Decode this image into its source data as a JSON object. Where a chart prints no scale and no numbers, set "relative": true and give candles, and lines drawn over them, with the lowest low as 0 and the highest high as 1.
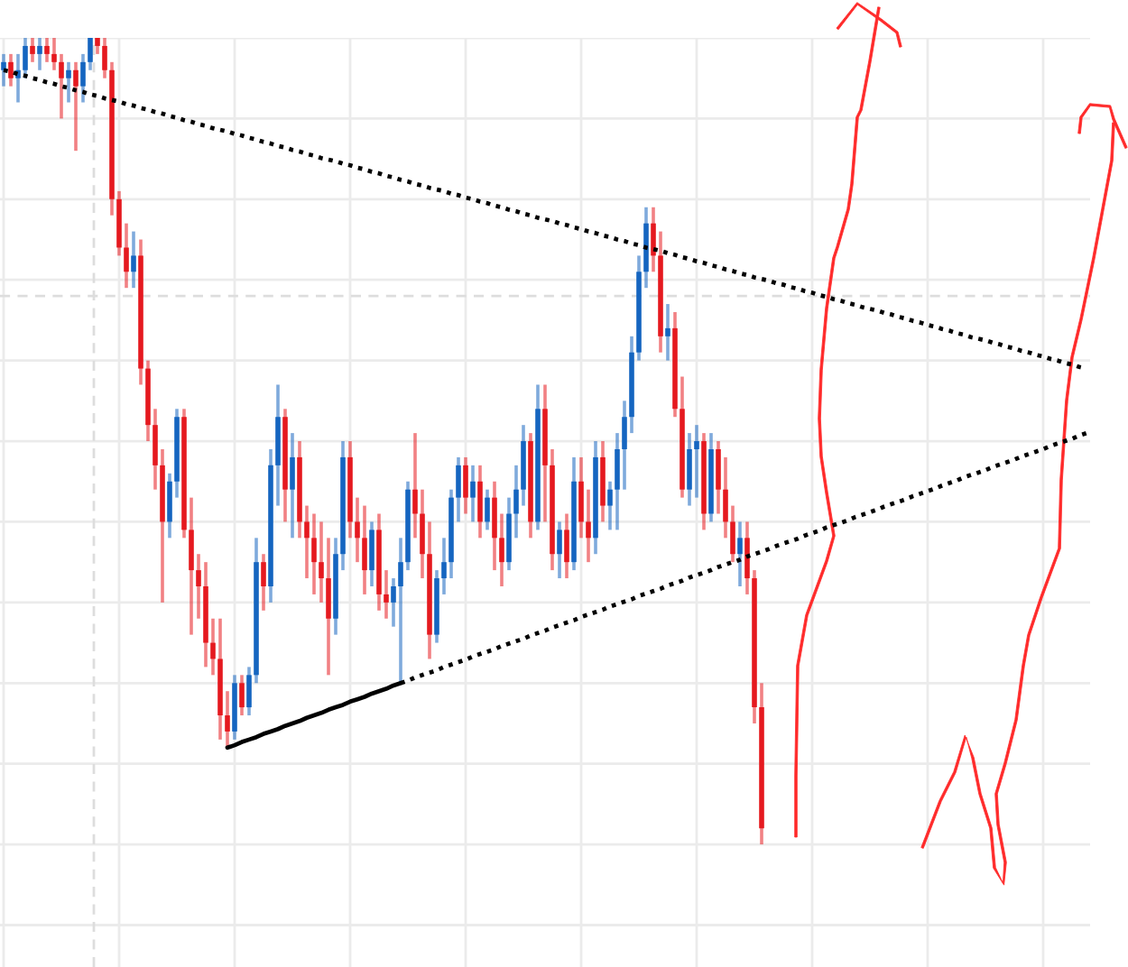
{
  "chart_data": {
    "type": "candlestick",
    "relative": true,
    "grid": true,
    "categories": [
      null,
      null,
      null,
      null,
      null,
      null,
      null,
      null,
      null,
      null,
      null,
      null,
      null,
      null,
      null,
      null,
      null,
      null,
      null,
      null,
      null,
      null,
      null,
      null,
      null,
      null,
      null,
      null,
      null,
      null,
      null,
      null,
      null,
      null,
      null,
      null,
      null,
      null,
      null,
      null,
      null,
      null,
      null,
      null,
      null,
      null,
      null,
      null,
      null,
      null,
      null,
      null,
      null,
      null,
      null,
      null,
      null,
      null,
      null,
      null,
      null,
      null,
      null,
      null,
      null,
      null,
      null,
      null,
      null,
      null,
      null,
      null,
      null,
      null,
      null,
      null,
      null,
      null,
      null,
      null,
      null,
      null,
      null,
      null,
      null,
      null,
      null,
      null,
      null,
      null,
      null,
      null,
      null,
      null,
      null,
      null,
      null,
      null,
      null,
      null,
      null,
      null,
      null,
      null,
      null,
      null,
      null,
      null,
      null,
      null,
      null,
      null,
      null,
      null,
      null,
      null,
      null,
      null,
      null,
      null,
      null,
      null,
      null,
      null,
      null,
      null,
      null,
      null,
      null,
      null,
      null,
      null,
      null,
      null,
      null,
      null,
      null,
      null,
      null,
      null,
      null,
      null,
      null,
      null,
      null,
      null,
      null,
      null,
      null,
      null,
      null
    ],
    "ohlc": [
      [
        0.96,
        0.98,
        0.94,
        0.97
      ],
      [
        0.97,
        0.98,
        0.94,
        0.95
      ],
      [
        0.95,
        0.98,
        0.92,
        0.96
      ],
      [
        0.96,
        1.0,
        0.95,
        0.99
      ],
      [
        0.99,
        1.0,
        0.97,
        0.98
      ],
      [
        0.98,
        1.0,
        0.96,
        0.99
      ],
      [
        0.99,
        1.0,
        0.97,
        0.98
      ],
      [
        0.98,
        1.0,
        0.96,
        0.97
      ],
      [
        0.97,
        0.98,
        0.9,
        0.95
      ],
      [
        0.95,
        0.97,
        0.92,
        0.96
      ],
      [
        0.96,
        0.97,
        0.86,
        0.94
      ],
      [
        0.94,
        0.98,
        0.92,
        0.97
      ],
      [
        0.97,
        1.0,
        0.96,
        1.0
      ],
      [
        1.0,
        1.0,
        0.98,
        0.99
      ],
      [
        0.99,
        1.0,
        0.95,
        0.96
      ],
      [
        0.96,
        0.97,
        0.78,
        0.8
      ],
      [
        0.8,
        0.81,
        0.73,
        0.74
      ],
      [
        0.74,
        0.77,
        0.69,
        0.71
      ],
      [
        0.71,
        0.76,
        0.69,
        0.73
      ],
      [
        0.73,
        0.75,
        0.57,
        0.59
      ],
      [
        0.59,
        0.6,
        0.5,
        0.52
      ],
      [
        0.52,
        0.54,
        0.44,
        0.47
      ],
      [
        0.47,
        0.49,
        0.3,
        0.4
      ],
      [
        0.4,
        0.46,
        0.38,
        0.45
      ],
      [
        0.45,
        0.54,
        0.43,
        0.53
      ],
      [
        0.53,
        0.54,
        0.38,
        0.39
      ],
      [
        0.39,
        0.43,
        0.26,
        0.34
      ],
      [
        0.34,
        0.36,
        0.28,
        0.32
      ],
      [
        0.32,
        0.35,
        0.22,
        0.25
      ],
      [
        0.25,
        0.28,
        0.21,
        0.23
      ],
      [
        0.23,
        0.28,
        0.13,
        0.16
      ],
      [
        0.16,
        0.19,
        0.12,
        0.14
      ],
      [
        0.14,
        0.21,
        0.13,
        0.2
      ],
      [
        0.2,
        0.21,
        0.16,
        0.17
      ],
      [
        0.17,
        0.22,
        0.16,
        0.21
      ],
      [
        0.21,
        0.38,
        0.2,
        0.35
      ],
      [
        0.35,
        0.36,
        0.29,
        0.32
      ],
      [
        0.32,
        0.49,
        0.3,
        0.47
      ],
      [
        0.47,
        0.57,
        0.42,
        0.53
      ],
      [
        0.53,
        0.54,
        0.4,
        0.44
      ],
      [
        0.44,
        0.51,
        0.38,
        0.48
      ],
      [
        0.48,
        0.5,
        0.38,
        0.4
      ],
      [
        0.4,
        0.42,
        0.33,
        0.38
      ],
      [
        0.38,
        0.41,
        0.31,
        0.35
      ],
      [
        0.35,
        0.4,
        0.3,
        0.33
      ],
      [
        0.33,
        0.38,
        0.21,
        0.28
      ],
      [
        0.28,
        0.38,
        0.26,
        0.36
      ],
      [
        0.36,
        0.5,
        0.34,
        0.48
      ],
      [
        0.48,
        0.5,
        0.38,
        0.4
      ],
      [
        0.4,
        0.43,
        0.35,
        0.38
      ],
      [
        0.38,
        0.42,
        0.31,
        0.34
      ],
      [
        0.34,
        0.4,
        0.32,
        0.39
      ],
      [
        0.39,
        0.41,
        0.29,
        0.31
      ],
      [
        0.31,
        0.34,
        0.28,
        0.3
      ],
      [
        0.3,
        0.33,
        0.27,
        0.32
      ],
      [
        0.32,
        0.38,
        0.2,
        0.35
      ],
      [
        0.35,
        0.45,
        0.34,
        0.44
      ],
      [
        0.44,
        0.51,
        0.38,
        0.41
      ],
      [
        0.41,
        0.44,
        0.33,
        0.36
      ],
      [
        0.36,
        0.4,
        0.23,
        0.26
      ],
      [
        0.26,
        0.34,
        0.25,
        0.33
      ],
      [
        0.33,
        0.38,
        0.31,
        0.35
      ],
      [
        0.35,
        0.44,
        0.33,
        0.43
      ],
      [
        0.43,
        0.48,
        0.4,
        0.47
      ],
      [
        0.47,
        0.48,
        0.41,
        0.43
      ],
      [
        0.43,
        0.47,
        0.4,
        0.45
      ],
      [
        0.45,
        0.47,
        0.38,
        0.4
      ],
      [
        0.4,
        0.44,
        0.39,
        0.43
      ],
      [
        0.43,
        0.45,
        0.34,
        0.38
      ],
      [
        0.38,
        0.41,
        0.32,
        0.35
      ],
      [
        0.35,
        0.43,
        0.34,
        0.41
      ],
      [
        0.41,
        0.47,
        0.38,
        0.44
      ],
      [
        0.44,
        0.52,
        0.42,
        0.5
      ],
      [
        0.5,
        0.51,
        0.38,
        0.4
      ],
      [
        0.4,
        0.57,
        0.39,
        0.54
      ],
      [
        0.54,
        0.57,
        0.4,
        0.47
      ],
      [
        0.47,
        0.49,
        0.34,
        0.36
      ],
      [
        0.36,
        0.4,
        0.33,
        0.39
      ],
      [
        0.39,
        0.41,
        0.33,
        0.35
      ],
      [
        0.35,
        0.48,
        0.34,
        0.45
      ],
      [
        0.45,
        0.48,
        0.38,
        0.4
      ],
      [
        0.4,
        0.44,
        0.35,
        0.38
      ],
      [
        0.38,
        0.5,
        0.36,
        0.48
      ],
      [
        0.48,
        0.5,
        0.4,
        0.42
      ],
      [
        0.42,
        0.45,
        0.39,
        0.44
      ],
      [
        0.44,
        0.51,
        0.39,
        0.49
      ],
      [
        0.49,
        0.55,
        0.44,
        0.53
      ],
      [
        0.53,
        0.63,
        0.51,
        0.61
      ],
      [
        0.61,
        0.73,
        0.6,
        0.71
      ],
      [
        0.71,
        0.79,
        0.69,
        0.77
      ],
      [
        0.77,
        0.79,
        0.71,
        0.73
      ],
      [
        0.73,
        0.76,
        0.61,
        0.63
      ],
      [
        0.63,
        0.67,
        0.6,
        0.64
      ],
      [
        0.64,
        0.66,
        0.53,
        0.54
      ],
      [
        0.54,
        0.58,
        0.43,
        0.44
      ],
      [
        0.44,
        0.51,
        0.42,
        0.49
      ],
      [
        0.49,
        0.52,
        0.43,
        0.5
      ],
      [
        0.5,
        0.51,
        0.39,
        0.41
      ],
      [
        0.41,
        0.51,
        0.4,
        0.49
      ],
      [
        0.49,
        0.5,
        0.41,
        0.44
      ],
      [
        0.44,
        0.48,
        0.38,
        0.4
      ],
      [
        0.4,
        0.42,
        0.35,
        0.36
      ],
      [
        0.36,
        0.4,
        0.32,
        0.38
      ],
      [
        0.38,
        0.4,
        0.31,
        0.33
      ],
      [
        0.33,
        0.34,
        0.15,
        0.17
      ],
      [
        0.17,
        0.2,
        0.0,
        0.02
      ],
      null,
      null,
      null,
      null,
      null,
      null,
      null,
      null,
      null,
      null,
      null,
      null,
      null,
      null,
      null,
      null,
      null,
      null,
      null,
      null,
      null,
      null,
      null,
      null,
      null,
      null,
      null,
      null,
      null,
      null,
      null,
      null,
      null,
      null,
      null,
      null,
      null,
      null,
      null,
      null,
      null,
      null,
      null,
      null,
      null
    ],
    "colors": [
      "#1565c0",
      "#e5191f",
      "#1565c0",
      "#1565c0",
      "#e5191f",
      "#1565c0",
      "#e5191f",
      "#e5191f",
      "#e5191f",
      "#1565c0",
      "#e5191f",
      "#1565c0",
      "#1565c0",
      "#e5191f",
      "#e5191f",
      "#e5191f",
      "#e5191f",
      "#e5191f",
      "#1565c0",
      "#e5191f",
      "#e5191f",
      "#e5191f",
      "#e5191f",
      "#1565c0",
      "#1565c0",
      "#e5191f",
      "#e5191f",
      "#e5191f",
      "#e5191f",
      "#e5191f",
      "#e5191f",
      "#e5191f",
      "#1565c0",
      "#e5191f",
      "#1565c0",
      "#1565c0",
      "#e5191f",
      "#1565c0",
      "#1565c0",
      "#e5191f",
      "#1565c0",
      "#e5191f",
      "#e5191f",
      "#e5191f",
      "#e5191f",
      "#e5191f",
      "#1565c0",
      "#1565c0",
      "#e5191f",
      "#e5191f",
      "#e5191f",
      "#1565c0",
      "#e5191f",
      "#e5191f",
      "#1565c0",
      "#1565c0",
      "#1565c0",
      "#e5191f",
      "#e5191f",
      "#e5191f",
      "#1565c0",
      "#1565c0",
      "#1565c0",
      "#1565c0",
      "#e5191f",
      "#1565c0",
      "#e5191f",
      "#1565c0",
      "#e5191f",
      "#e5191f",
      "#1565c0",
      "#1565c0",
      "#1565c0",
      "#e5191f",
      "#1565c0",
      "#e5191f",
      "#e5191f",
      "#1565c0",
      "#e5191f",
      "#1565c0",
      "#e5191f",
      "#e5191f",
      "#1565c0",
      "#e5191f",
      "#1565c0",
      "#1565c0",
      "#1565c0",
      "#1565c0",
      "#1565c0",
      "#1565c0",
      "#e5191f",
      "#e5191f",
      "#1565c0",
      "#e5191f",
      "#e5191f",
      "#1565c0",
      "#1565c0",
      "#e5191f",
      "#1565c0",
      "#e5191f",
      "#e5191f",
      "#e5191f",
      "#1565c0",
      "#e5191f",
      "#e5191f",
      "#e5191f",
      null,
      null,
      null,
      null,
      null,
      null,
      null,
      null,
      null,
      null,
      null,
      null,
      null,
      null,
      null,
      null,
      null,
      null,
      null,
      null,
      null,
      null,
      null,
      null,
      null,
      null,
      null,
      null,
      null,
      null,
      null,
      null,
      null,
      null,
      null,
      null,
      null,
      null,
      null,
      null,
      null,
      null,
      null,
      null,
      null
    ],
    "series": [
      {
        "type": "line",
        "color": "#000000",
        "line_style": "dotted",
        "values": [
          0.96,
          0.958,
          0.955,
          0.953,
          0.95,
          0.948,
          0.945,
          0.943,
          0.94,
          0.938,
          0.935,
          0.933,
          0.93,
          0.928,
          0.925,
          0.923,
          0.921,
          0.918,
          0.916,
          0.913,
          0.911,
          0.908,
          0.906,
          0.903,
          0.901,
          0.898,
          0.896,
          0.893,
          0.891,
          0.888,
          0.886,
          0.884,
          0.881,
          0.879,
          0.876,
          0.874,
          0.871,
          0.869,
          0.866,
          0.864,
          0.861,
          0.859,
          0.856,
          0.854,
          0.851,
          0.849,
          0.847,
          0.844,
          0.842,
          0.839,
          0.837,
          0.834,
          0.832,
          0.829,
          0.827,
          0.824,
          0.822,
          0.819,
          0.817,
          0.814,
          0.812,
          0.81,
          0.807,
          0.805,
          0.802,
          0.8,
          0.797,
          0.795,
          0.792,
          0.79,
          0.787,
          0.785,
          0.782,
          0.78,
          0.777,
          0.775,
          0.773,
          0.77,
          0.768,
          0.765,
          0.763,
          0.76,
          0.758,
          0.755,
          0.753,
          0.75,
          0.748,
          0.745,
          0.743,
          0.74,
          0.738,
          0.736,
          0.733,
          0.731,
          0.728,
          0.726,
          0.723,
          0.721,
          0.718,
          0.716,
          0.713,
          0.711,
          0.708,
          0.706,
          0.703,
          0.701,
          0.699,
          0.696,
          0.694,
          0.691,
          0.689,
          0.686,
          0.684,
          0.681,
          0.679,
          0.676,
          0.674,
          0.671,
          0.669,
          0.666,
          0.664,
          0.662,
          0.659,
          0.657,
          0.654,
          0.652,
          0.649,
          0.647,
          0.644,
          0.642,
          0.639,
          0.637,
          0.634,
          0.632,
          0.629,
          0.627,
          0.625,
          0.622,
          0.62,
          0.617,
          0.615,
          0.612,
          0.61,
          0.607,
          0.605,
          0.602,
          0.6,
          0.597,
          0.595,
          0.592,
          0.59
        ]
      },
      {
        "type": "line",
        "color": "#000000",
        "line_style": "solid",
        "values": [
          null,
          null,
          null,
          null,
          null,
          null,
          null,
          null,
          null,
          null,
          null,
          null,
          null,
          null,
          null,
          null,
          null,
          null,
          null,
          null,
          null,
          null,
          null,
          null,
          null,
          null,
          null,
          null,
          null,
          null,
          null,
          0.12,
          0.123,
          0.127,
          0.13,
          0.133,
          0.137,
          0.14,
          0.143,
          0.147,
          0.15,
          0.153,
          0.157,
          0.16,
          0.163,
          0.167,
          0.17,
          0.173,
          0.177,
          0.18,
          0.183,
          0.187,
          0.19,
          0.193,
          0.197,
          0.2,
          null,
          null,
          null,
          null,
          null,
          null,
          null,
          null,
          null,
          null,
          null,
          null,
          null,
          null,
          null,
          null,
          null,
          null,
          null,
          null,
          null,
          null,
          null,
          null,
          null,
          null,
          null,
          null,
          null,
          null,
          null,
          null,
          null,
          null,
          null,
          null,
          null,
          null,
          null,
          null,
          null,
          null,
          null,
          null,
          null,
          null,
          null,
          null,
          null,
          null,
          null,
          null,
          null,
          null,
          null,
          null,
          null,
          null,
          null,
          null,
          null,
          null,
          null,
          null,
          null,
          null,
          null,
          null,
          null,
          null,
          null,
          null,
          null,
          null,
          null,
          null,
          null,
          null,
          null,
          null,
          null,
          null,
          null,
          null,
          null,
          null,
          null,
          null,
          null,
          null,
          null,
          null,
          null,
          null,
          null
        ]
      },
      {
        "type": "line",
        "color": "#000000",
        "line_style": "dotted",
        "values": [
          null,
          null,
          null,
          null,
          null,
          null,
          null,
          null,
          null,
          null,
          null,
          null,
          null,
          null,
          null,
          null,
          null,
          null,
          null,
          null,
          null,
          null,
          null,
          null,
          null,
          null,
          null,
          null,
          null,
          null,
          null,
          null,
          null,
          null,
          null,
          null,
          null,
          null,
          null,
          null,
          null,
          null,
          null,
          null,
          null,
          null,
          null,
          null,
          null,
          null,
          null,
          null,
          null,
          null,
          null,
          0.2,
          0.203,
          0.207,
          0.21,
          0.213,
          0.216,
          0.22,
          0.223,
          0.226,
          0.229,
          0.233,
          0.236,
          0.239,
          0.242,
          0.246,
          0.249,
          0.252,
          0.255,
          0.259,
          0.262,
          0.265,
          0.269,
          0.272,
          0.275,
          0.278,
          0.282,
          0.285,
          0.288,
          0.291,
          0.295,
          0.298,
          0.301,
          0.304,
          0.308,
          0.311,
          0.314,
          0.317,
          0.321,
          0.324,
          0.327,
          0.331,
          0.334,
          0.337,
          0.34,
          0.344,
          0.347,
          0.35,
          0.353,
          0.357,
          0.36,
          0.363,
          0.366,
          0.37,
          0.373,
          0.376,
          0.379,
          0.383,
          0.386,
          0.389,
          0.393,
          0.396,
          0.399,
          0.402,
          0.406,
          0.409,
          0.412,
          0.415,
          0.419,
          0.422,
          0.425,
          0.428,
          0.432,
          0.435,
          0.438,
          0.441,
          0.445,
          0.448,
          0.451,
          0.455,
          0.458,
          0.461,
          0.464,
          0.468,
          0.471,
          0.474,
          0.477,
          0.481,
          0.484,
          0.487,
          0.49,
          0.494,
          0.497,
          0.5,
          0.503,
          0.507,
          0.51
        ]
      }
    ],
    "ref_lines": [
      {
        "axis": "y",
        "value": 0.68,
        "color": "#dddddd",
        "line_style": "dashed"
      }
    ]
  }
}
